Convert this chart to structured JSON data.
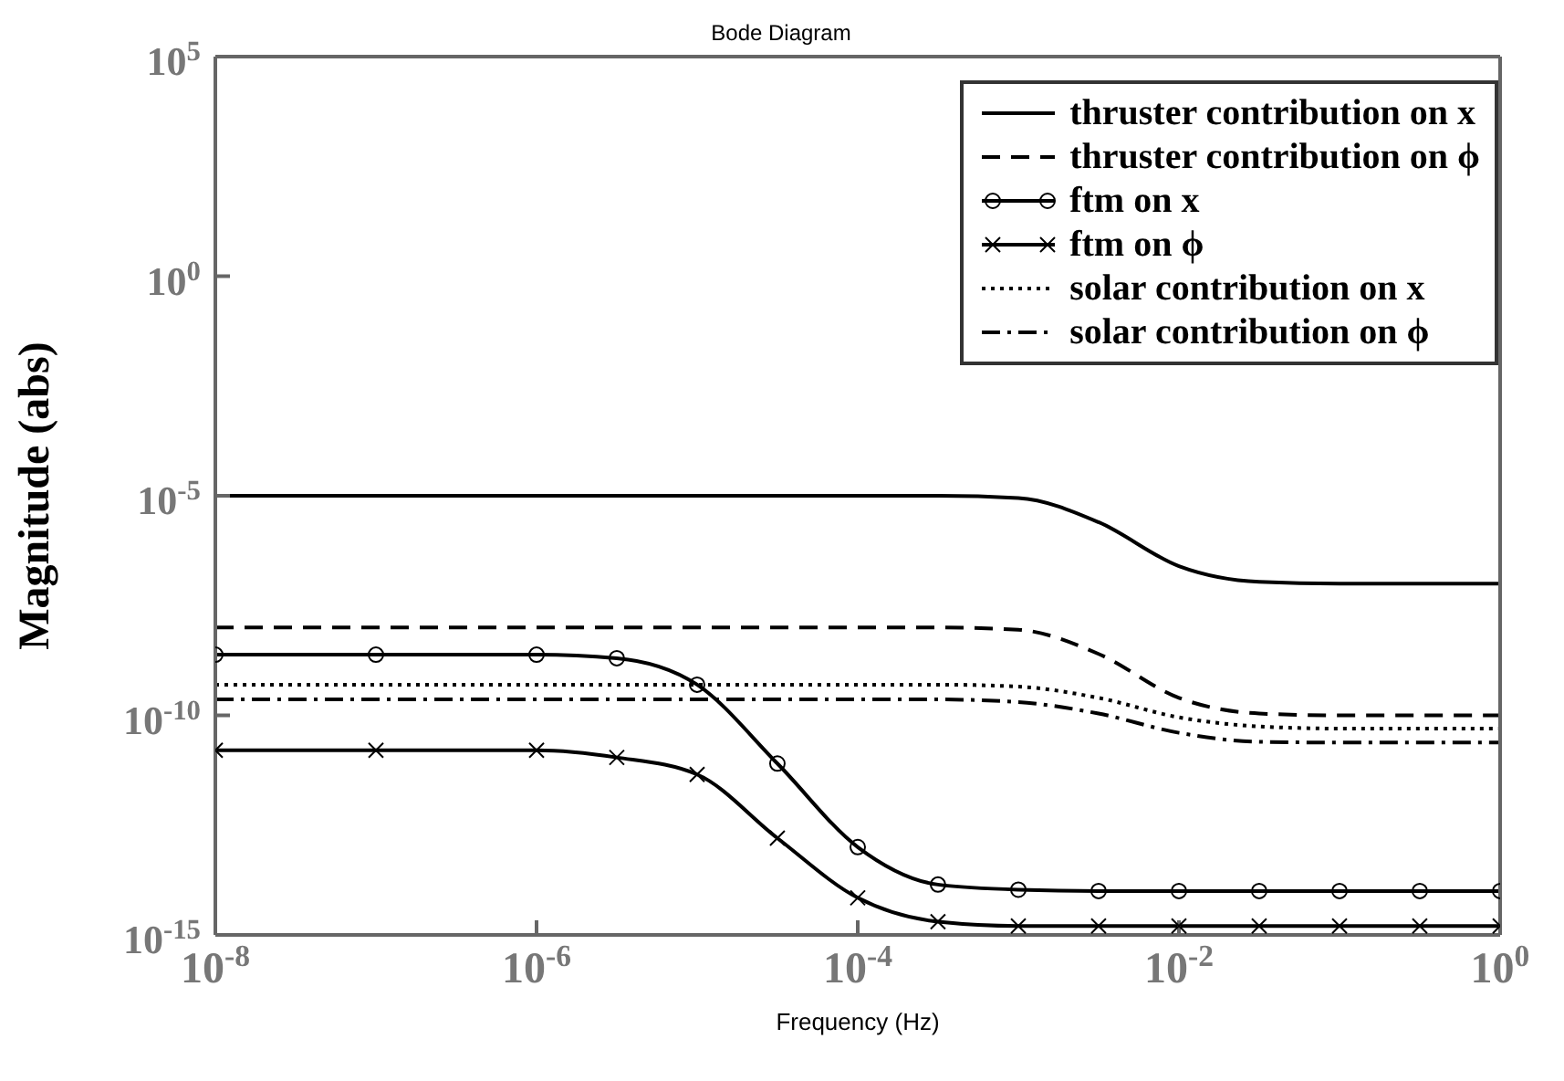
{
  "chart_data": {
    "type": "line",
    "title": "Bode Diagram",
    "xlabel": "Frequency  (Hz)",
    "ylabel": "Magnitude (abs)",
    "log": "xy",
    "grid": false,
    "legend": "top right",
    "marker": "none",
    "x": [
      1e-08,
      1e-07,
      1e-06,
      3.16e-06,
      1e-05,
      3.16e-05,
      0.0001,
      0.000316,
      0.001,
      0.00316,
      0.01,
      0.0316,
      0.1,
      0.316,
      1
    ],
    "xlim": [
      1e-08,
      1
    ],
    "xticks": [
      {
        "value": 1e-08,
        "label": "10$^{-8}$"
      },
      {
        "value": 1e-06,
        "label": "10$^{-6}$"
      },
      {
        "value": 0.0001,
        "label": "10$^{-4}$"
      },
      {
        "value": 0.01,
        "label": "10$^{-2}$"
      },
      {
        "value": 1,
        "label": "10$^{0}$"
      }
    ],
    "ylim": [
      1e-15,
      100000.0
    ],
    "yticks": [
      {
        "value": 1e-15,
        "label": "10$^{-15}$"
      },
      {
        "value": 1e-10,
        "label": "10$^{-10}$"
      },
      {
        "value": 1e-05,
        "label": "10$^{-5}$"
      },
      {
        "value": 1,
        "label": "10$^{0}$"
      },
      {
        "value": 100000.0,
        "label": "10$^{5}$"
      }
    ],
    "series": [
      {
        "name": "thruster contribution on x",
        "color": "#000000",
        "line_style": "solid",
        "values": [
          1e-05,
          1e-05,
          1e-05,
          1e-05,
          1e-05,
          1e-05,
          1e-05,
          1e-05,
          8.9e-06,
          2.5e-06,
          2.5e-07,
          1.1e-07,
          1e-07,
          1e-07,
          1e-07
        ]
      },
      {
        "name": "thruster contribution on ϕ",
        "color": "#000000",
        "line_style": "dashed",
        "values": [
          1e-08,
          1e-08,
          1e-08,
          1e-08,
          1e-08,
          1e-08,
          1e-08,
          1e-08,
          8.9e-09,
          2.5e-09,
          2.5e-10,
          1.1e-10,
          1e-10,
          1e-10,
          1e-10
        ]
      },
      {
        "name": "ftm on x",
        "color": "#000000",
        "line_style": "solid",
        "marker": "circle",
        "values": [
          2.4e-09,
          2.4e-09,
          2.4e-09,
          2e-09,
          5e-10,
          8e-12,
          1e-13,
          1.4e-14,
          1.07e-14,
          1e-14,
          1e-14,
          1e-14,
          1e-14,
          1e-14,
          1e-14
        ]
      },
      {
        "name": "ftm on ϕ",
        "color": "#000000",
        "line_style": "solid",
        "marker": "cross",
        "values": [
          1.6e-11,
          1.6e-11,
          1.6e-11,
          1.1e-11,
          4.5e-12,
          1.6e-13,
          7e-15,
          2e-15,
          1.6e-15,
          1.6e-15,
          1.6e-15,
          1.6e-15,
          1.6e-15,
          1.6e-15,
          1.6e-15
        ]
      },
      {
        "name": "solar contribution on x",
        "color": "#000000",
        "line_style": "dotted",
        "values": [
          5e-10,
          5e-10,
          5e-10,
          5e-10,
          5e-10,
          5e-10,
          5e-10,
          5e-10,
          4.5e-10,
          2.5e-10,
          9e-11,
          5.6e-11,
          5e-11,
          5e-11,
          5e-11
        ]
      },
      {
        "name": "solar contribution on ϕ",
        "color": "#000000",
        "line_style": "dashdot",
        "values": [
          2.3e-10,
          2.3e-10,
          2.3e-10,
          2.3e-10,
          2.3e-10,
          2.3e-10,
          2.3e-10,
          2.3e-10,
          2e-10,
          1.1e-10,
          4e-11,
          2.5e-11,
          2.4e-11,
          2.4e-11,
          2.4e-11
        ]
      }
    ]
  }
}
